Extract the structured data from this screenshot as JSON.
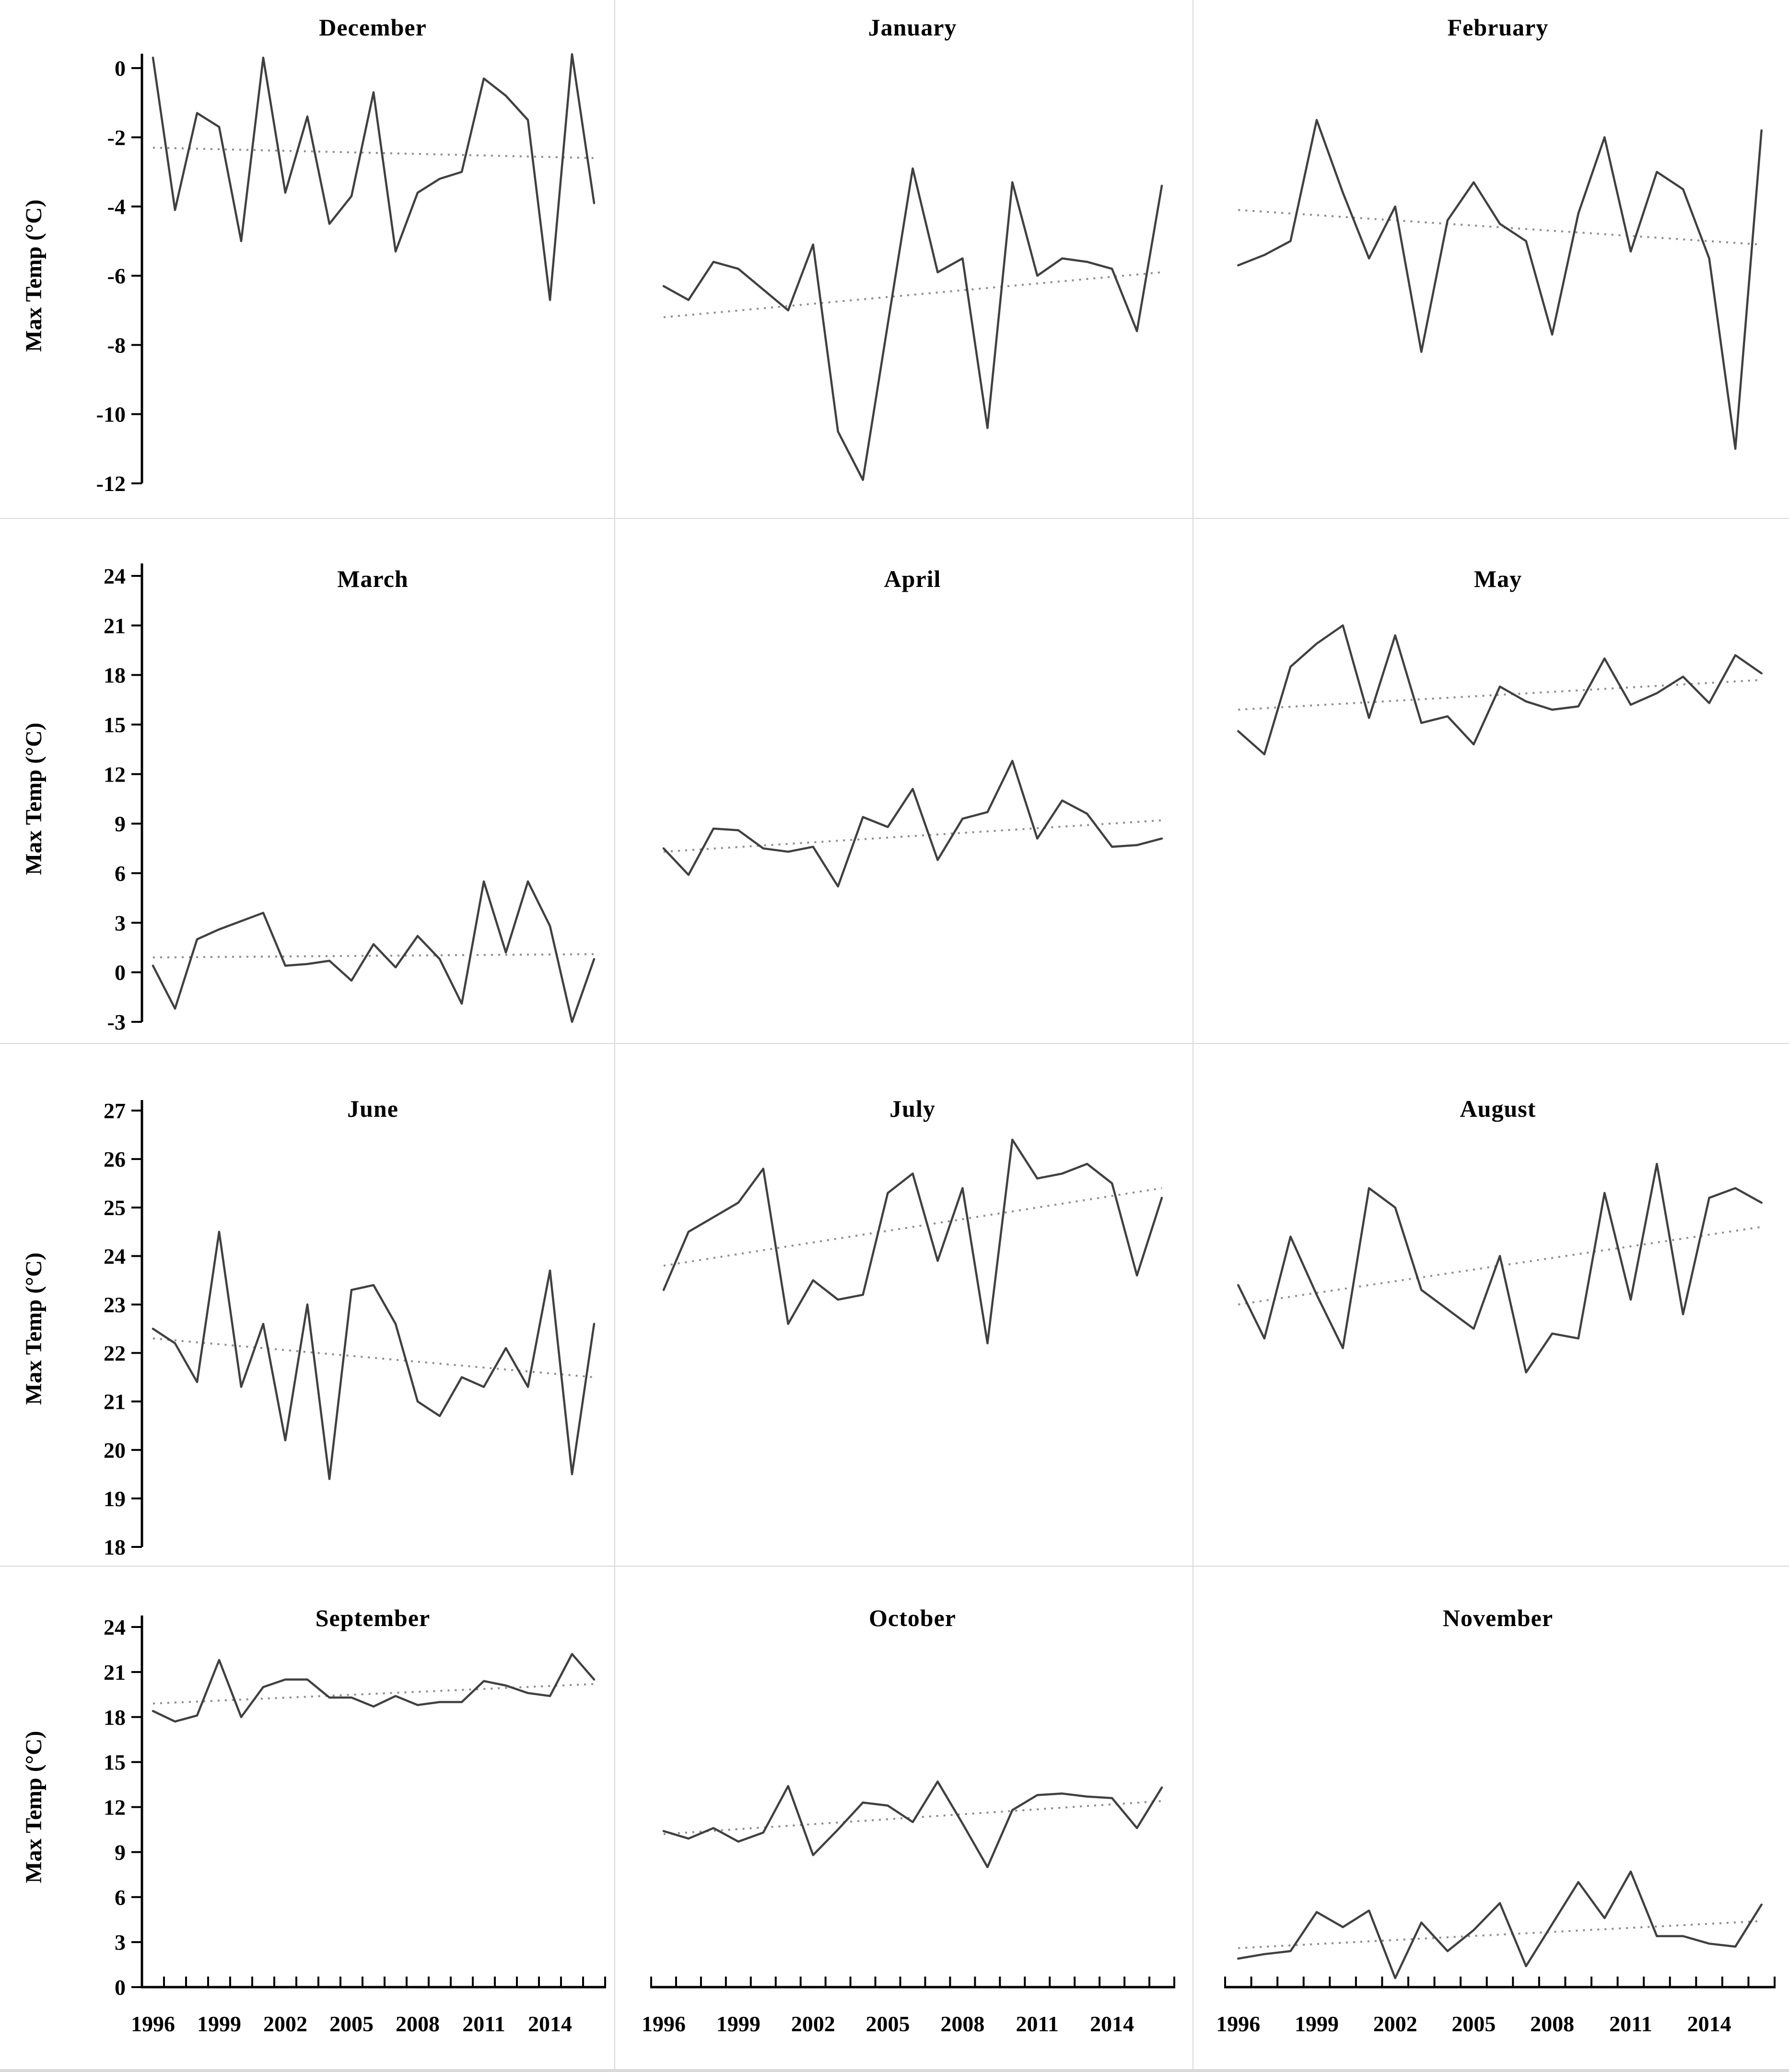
{
  "figure": {
    "y_axis_label": "Max Temp (°C)",
    "x_tick_labels": [
      "1996",
      "1999",
      "2002",
      "2005",
      "2008",
      "2011",
      "2014"
    ],
    "years": [
      1996,
      1997,
      1998,
      1999,
      2000,
      2001,
      2002,
      2003,
      2004,
      2005,
      2006,
      2007,
      2008,
      2009,
      2010,
      2011,
      2012,
      2013,
      2014,
      2015,
      2016
    ],
    "line_color": "#404040",
    "trend_color": "#8c8c8c",
    "axis_color": "#000000",
    "separator_color": "#d9d9d9"
  },
  "row_axes": [
    {
      "ylim": [
        -12,
        0
      ],
      "yticks": [
        0,
        -2,
        -4,
        -6,
        -8,
        -10,
        -12
      ],
      "grid": false
    },
    {
      "ylim": [
        -3,
        24
      ],
      "yticks": [
        24,
        21,
        18,
        15,
        12,
        9,
        6,
        3,
        0,
        -3
      ],
      "grid": false
    },
    {
      "ylim": [
        18,
        27
      ],
      "yticks": [
        27,
        26,
        25,
        24,
        23,
        22,
        21,
        20,
        19,
        18
      ],
      "grid": false
    },
    {
      "ylim": [
        0,
        24
      ],
      "yticks": [
        24,
        21,
        18,
        15,
        12,
        9,
        6,
        3,
        0
      ],
      "grid": false
    }
  ],
  "chart_data": [
    {
      "type": "line",
      "title": "December",
      "xlabel": "",
      "ylabel": "Max Temp (°C)",
      "values": [
        0.3,
        -4.1,
        -1.3,
        -1.7,
        -5.0,
        0.3,
        -3.6,
        -1.4,
        -4.5,
        -3.7,
        -0.7,
        -5.3,
        -3.6,
        -3.2,
        -3.0,
        -0.3,
        -0.8,
        -1.5,
        -6.7,
        0.4,
        -3.9
      ],
      "trendline": {
        "start": -2.3,
        "end": -2.6
      }
    },
    {
      "type": "line",
      "title": "January",
      "xlabel": "",
      "ylabel": "Max Temp (°C)",
      "values": [
        -6.3,
        -6.7,
        -5.6,
        -5.8,
        -6.4,
        -7.0,
        -5.1,
        -10.5,
        -11.9,
        -7.4,
        -2.9,
        -5.9,
        -5.5,
        -10.4,
        -3.3,
        -6.0,
        -5.5,
        -5.6,
        -5.8,
        -7.6,
        -3.4
      ],
      "trendline": {
        "start": -7.2,
        "end": -5.9
      }
    },
    {
      "type": "line",
      "title": "February",
      "xlabel": "",
      "ylabel": "Max Temp (°C)",
      "values": [
        -5.7,
        -5.4,
        -5.0,
        -1.5,
        -3.6,
        -5.5,
        -4.0,
        -8.2,
        -4.4,
        -3.3,
        -4.5,
        -5.0,
        -7.7,
        -4.2,
        -2.0,
        -5.3,
        -3.0,
        -3.5,
        -5.5,
        -11.0,
        -1.8
      ],
      "trendline": {
        "start": -4.1,
        "end": -5.1
      }
    },
    {
      "type": "line",
      "title": "March",
      "xlabel": "",
      "ylabel": "Max Temp (°C)",
      "values": [
        0.4,
        -2.2,
        2.0,
        2.6,
        3.1,
        3.6,
        0.4,
        0.5,
        0.7,
        -0.5,
        1.7,
        0.3,
        2.2,
        0.8,
        -1.9,
        5.5,
        1.2,
        5.5,
        2.8,
        -3.0,
        0.8
      ],
      "trendline": {
        "start": 0.9,
        "end": 1.1
      }
    },
    {
      "type": "line",
      "title": "April",
      "xlabel": "",
      "ylabel": "Max Temp (°C)",
      "values": [
        7.5,
        5.9,
        8.7,
        8.6,
        7.5,
        7.3,
        7.6,
        5.2,
        9.4,
        8.8,
        11.1,
        6.8,
        9.3,
        9.7,
        12.8,
        8.1,
        10.4,
        9.6,
        7.6,
        7.7,
        8.1
      ],
      "trendline": {
        "start": 7.3,
        "end": 9.2
      }
    },
    {
      "type": "line",
      "title": "May",
      "xlabel": "",
      "ylabel": "Max Temp (°C)",
      "values": [
        14.6,
        13.2,
        18.5,
        19.9,
        21.0,
        15.4,
        20.4,
        15.1,
        15.5,
        13.8,
        17.3,
        16.4,
        15.9,
        16.1,
        19.0,
        16.2,
        16.9,
        17.9,
        16.3,
        19.2,
        18.1
      ],
      "trendline": {
        "start": 15.9,
        "end": 17.7
      }
    },
    {
      "type": "line",
      "title": "June",
      "xlabel": "",
      "ylabel": "Max Temp (°C)",
      "values": [
        22.5,
        22.2,
        21.4,
        24.5,
        21.3,
        22.6,
        20.2,
        23.0,
        19.4,
        23.3,
        23.4,
        22.6,
        21.0,
        20.7,
        21.5,
        21.3,
        22.1,
        21.3,
        23.7,
        19.5,
        22.6
      ],
      "trendline": {
        "start": 22.3,
        "end": 21.5
      }
    },
    {
      "type": "line",
      "title": "July",
      "xlabel": "",
      "ylabel": "Max Temp (°C)",
      "values": [
        23.3,
        24.5,
        24.8,
        25.1,
        25.8,
        22.6,
        23.5,
        23.1,
        23.2,
        25.3,
        25.7,
        23.9,
        25.4,
        22.2,
        26.4,
        25.6,
        25.7,
        25.9,
        25.5,
        23.6,
        25.2
      ],
      "trendline": {
        "start": 23.8,
        "end": 25.4
      }
    },
    {
      "type": "line",
      "title": "August",
      "xlabel": "",
      "ylabel": "Max Temp (°C)",
      "values": [
        23.4,
        22.3,
        24.4,
        23.2,
        22.1,
        25.4,
        25.0,
        23.3,
        22.9,
        22.5,
        24.0,
        21.6,
        22.4,
        22.3,
        25.3,
        23.1,
        25.9,
        22.8,
        25.2,
        25.4,
        25.1
      ],
      "trendline": {
        "start": 23.0,
        "end": 24.6
      }
    },
    {
      "type": "line",
      "title": "September",
      "xlabel": "",
      "ylabel": "Max Temp (°C)",
      "values": [
        18.4,
        17.7,
        18.1,
        21.8,
        18.0,
        20.0,
        20.5,
        20.5,
        19.3,
        19.3,
        18.7,
        19.4,
        18.8,
        19.0,
        19.0,
        20.4,
        20.1,
        19.6,
        19.4,
        22.2,
        20.5
      ],
      "trendline": {
        "start": 18.9,
        "end": 20.2
      }
    },
    {
      "type": "line",
      "title": "October",
      "xlabel": "",
      "ylabel": "Max Temp (°C)",
      "values": [
        10.4,
        9.9,
        10.6,
        9.7,
        10.3,
        13.4,
        8.8,
        10.5,
        12.3,
        12.1,
        11.0,
        13.7,
        10.9,
        8.0,
        11.8,
        12.8,
        12.9,
        12.7,
        12.6,
        10.6,
        13.3
      ],
      "trendline": {
        "start": 10.2,
        "end": 12.4
      }
    },
    {
      "type": "line",
      "title": "November",
      "xlabel": "",
      "ylabel": "Max Temp (°C)",
      "values": [
        1.9,
        2.2,
        2.4,
        5.0,
        4.0,
        5.1,
        0.6,
        4.3,
        2.4,
        3.8,
        5.6,
        1.4,
        4.2,
        7.0,
        4.6,
        7.7,
        3.4,
        3.4,
        2.9,
        2.7,
        5.5
      ],
      "trendline": {
        "start": 2.6,
        "end": 4.4
      }
    }
  ]
}
